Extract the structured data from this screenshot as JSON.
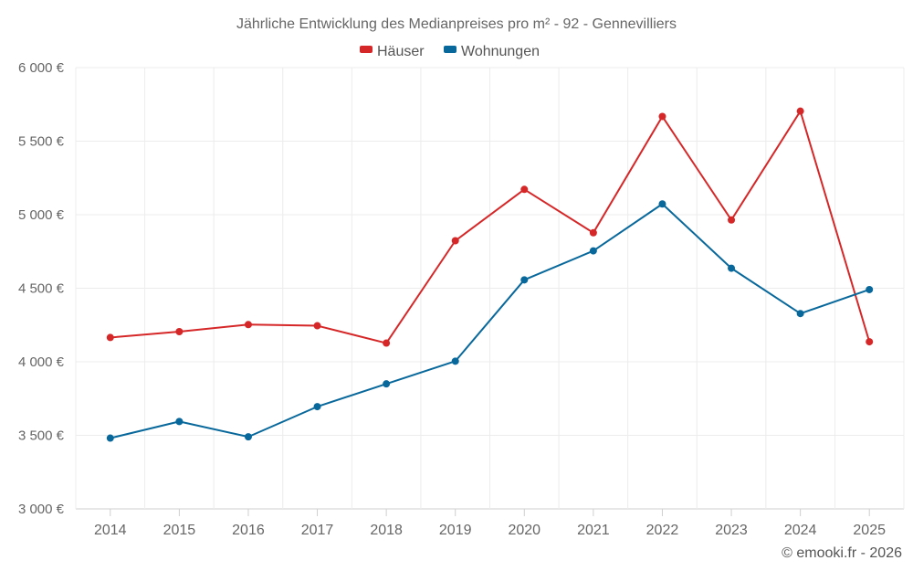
{
  "chart_data": {
    "type": "line",
    "title": "Jährliche Entwicklung des Medianpreises pro m² - 92 - Gennevilliers",
    "categories": [
      "2014",
      "2015",
      "2016",
      "2017",
      "2018",
      "2019",
      "2020",
      "2021",
      "2022",
      "2023",
      "2024",
      "2025"
    ],
    "series": [
      {
        "name": "Häuser",
        "color": "#d62728",
        "values": [
          4165,
          4205,
          4253,
          4245,
          4127,
          4823,
          5172,
          4877,
          5668,
          4964,
          5704,
          4136
        ]
      },
      {
        "name": "Wohnungen",
        "color": "#08689b",
        "values": [
          3481,
          3594,
          3490,
          3695,
          3850,
          4004,
          4557,
          4754,
          5073,
          4636,
          4328,
          4491
        ]
      }
    ],
    "y_ticks": [
      "3 000 €",
      "3 500 €",
      "4 000 €",
      "4 500 €",
      "5 000 €",
      "5 500 €",
      "6 000 €"
    ],
    "ylim": [
      3000,
      6000
    ],
    "grid": true,
    "legend_position": "top-center"
  },
  "credit": "© emooki.fr - 2026"
}
